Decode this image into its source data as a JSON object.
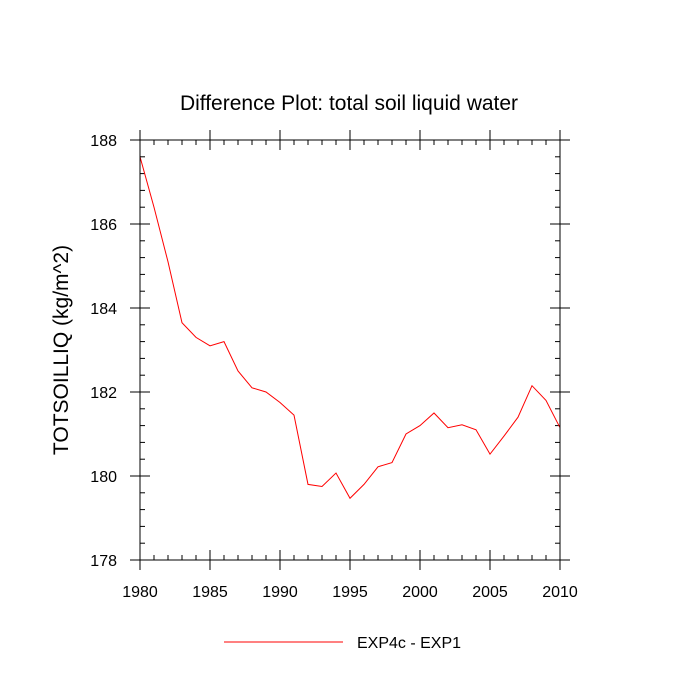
{
  "chart_data": {
    "type": "line",
    "title": "Difference Plot: total soil liquid water",
    "xlabel": "",
    "ylabel": "TOTSOILLIQ  (kg/m^2)",
    "xlim": [
      1980,
      2010
    ],
    "ylim": [
      178,
      188
    ],
    "x_ticks": [
      1980,
      1985,
      1990,
      1995,
      2000,
      2005,
      2010
    ],
    "y_ticks": [
      178,
      180,
      182,
      184,
      186,
      188
    ],
    "x_minor_step": 1,
    "y_minor_step": 0.4,
    "grid": false,
    "legend_position": "bottom-center",
    "x": [
      1980,
      1981,
      1982,
      1983,
      1984,
      1985,
      1986,
      1987,
      1988,
      1989,
      1990,
      1991,
      1992,
      1993,
      1994,
      1995,
      1996,
      1997,
      1998,
      1999,
      2000,
      2001,
      2002,
      2003,
      2004,
      2005,
      2006,
      2007,
      2008,
      2009,
      2010
    ],
    "series": [
      {
        "name": "EXP4c - EXP1",
        "color": "#ff0000",
        "values": [
          187.6,
          186.4,
          185.1,
          183.65,
          183.3,
          183.1,
          183.2,
          182.5,
          182.1,
          182.0,
          181.75,
          181.45,
          179.8,
          179.75,
          180.07,
          179.47,
          179.8,
          180.22,
          180.32,
          181.0,
          181.2,
          181.5,
          181.15,
          181.22,
          181.1,
          180.52,
          180.95,
          181.4,
          182.15,
          181.8,
          181.15
        ]
      }
    ]
  }
}
